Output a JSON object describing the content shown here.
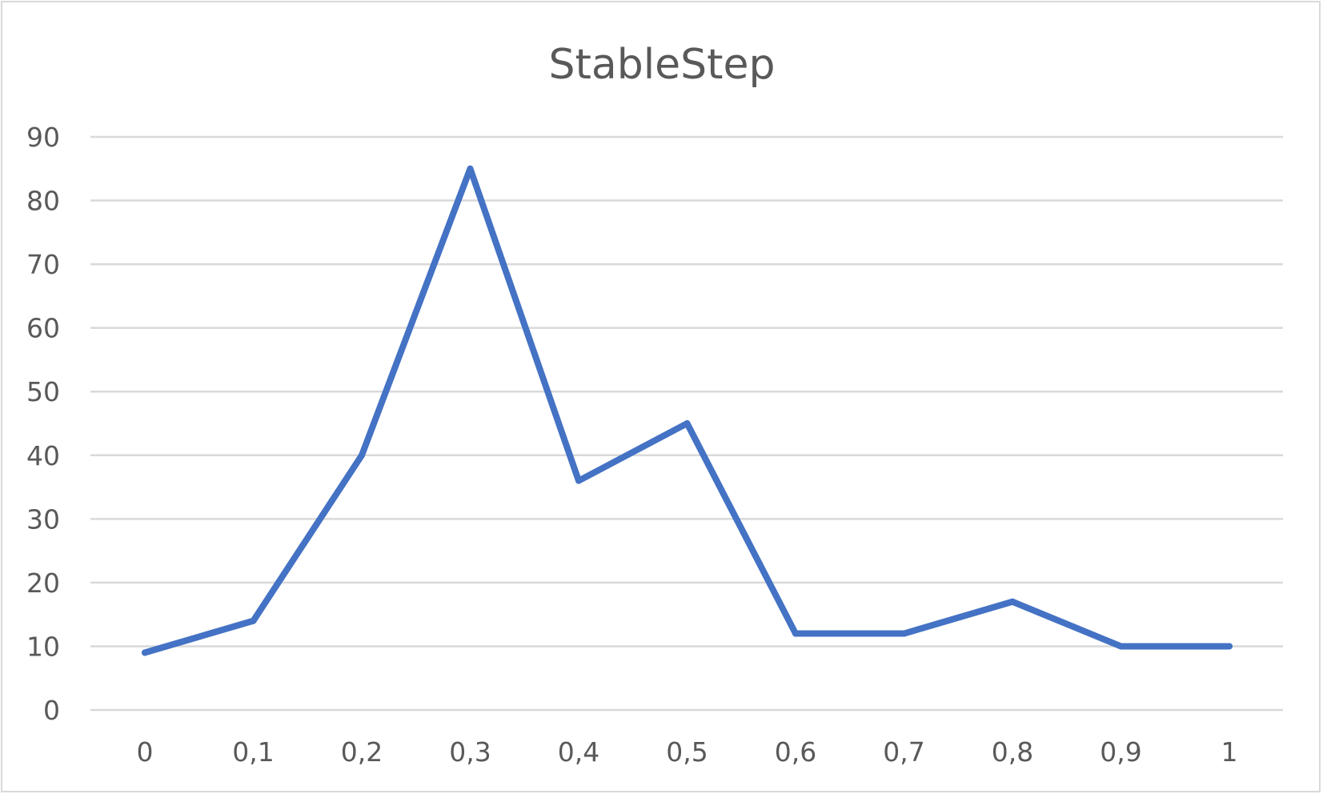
{
  "chart_data": {
    "type": "line",
    "title": "StableStep",
    "xlabel": "",
    "ylabel": "",
    "categories": [
      "0",
      "0,1",
      "0,2",
      "0,3",
      "0,4",
      "0,5",
      "0,6",
      "0,7",
      "0,8",
      "0,9",
      "1"
    ],
    "series": [
      {
        "values": [
          9,
          14,
          40,
          85,
          36,
          45,
          12,
          12,
          17,
          10,
          10
        ],
        "color": "#4472c4"
      }
    ],
    "ylim": [
      0,
      90
    ],
    "yticks": [
      "0",
      "10",
      "20",
      "30",
      "40",
      "50",
      "60",
      "70",
      "80",
      "90"
    ],
    "grid": true,
    "legend": "none"
  }
}
